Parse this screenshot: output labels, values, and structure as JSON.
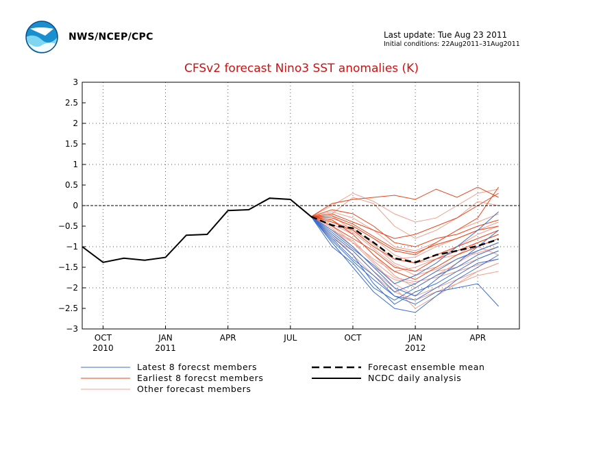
{
  "header": {
    "agency": "NWS/NCEP/CPC",
    "last_update": "Last update: Tue Aug 23 2011",
    "initial_conditions": "Initial conditions: 22Aug2011–31Aug2011"
  },
  "colors": {
    "latest": "#3a6fcf",
    "earliest": "#e8461a",
    "other": "#f0a090",
    "mean": "#000000",
    "analysis": "#000000",
    "title": "#d01010"
  },
  "chart_data": {
    "type": "line",
    "title": "CFSv2 forecast Nino3 SST anomalies (K)",
    "ylim": [
      -3,
      3
    ],
    "yticks": [
      "3",
      "2.5",
      "2",
      "1.5",
      "1",
      "0.5",
      "0",
      "−0.5",
      "−1",
      "−1.5",
      "−2",
      "−2.5",
      "−3"
    ],
    "xticks": [
      {
        "label": "OCT",
        "sub": "2010",
        "month": 1
      },
      {
        "label": "JAN",
        "sub": "2011",
        "month": 4
      },
      {
        "label": "APR",
        "sub": "",
        "month": 7
      },
      {
        "label": "JUL",
        "sub": "",
        "month": 10
      },
      {
        "label": "OCT",
        "sub": "",
        "month": 13
      },
      {
        "label": "JAN",
        "sub": "2012",
        "month": 16
      },
      {
        "label": "APR",
        "sub": "",
        "month": 19
      }
    ],
    "xrange": [
      0,
      21
    ],
    "analysis": {
      "name": "NCDC daily analysis",
      "x": [
        0,
        1,
        2,
        3,
        4,
        5,
        6,
        7,
        8,
        9,
        10,
        11
      ],
      "y": [
        -1.0,
        -1.38,
        -1.28,
        -1.33,
        -1.26,
        -0.72,
        -0.7,
        -0.12,
        -0.1,
        0.18,
        0.15,
        -0.27
      ]
    },
    "ensemble_mean": {
      "name": "Forecast ensemble mean",
      "x": [
        11,
        12,
        13,
        14,
        15,
        16,
        17,
        18,
        19,
        20
      ],
      "y": [
        -0.27,
        -0.48,
        -0.55,
        -0.9,
        -1.28,
        -1.38,
        -1.2,
        -1.1,
        -0.98,
        -0.82
      ]
    },
    "latest_members": {
      "name": "Latest 8 forecst members",
      "x": [
        11,
        12,
        13,
        14,
        15,
        16,
        17,
        18,
        19,
        20
      ],
      "series": [
        [
          -0.27,
          -0.75,
          -1.2,
          -1.9,
          -2.4,
          -2.1,
          -1.9,
          -1.6,
          -1.3,
          -1.1
        ],
        [
          -0.27,
          -0.9,
          -1.5,
          -2.1,
          -2.5,
          -2.6,
          -2.2,
          -1.8,
          -1.5,
          -1.2
        ],
        [
          -0.27,
          -0.6,
          -1.0,
          -1.5,
          -2.0,
          -2.2,
          -1.8,
          -1.4,
          -1.0,
          -0.6
        ],
        [
          -0.27,
          -0.8,
          -1.3,
          -1.7,
          -2.2,
          -2.4,
          -2.1,
          -2.0,
          -1.9,
          -2.45
        ],
        [
          -0.27,
          -0.7,
          -1.1,
          -1.6,
          -2.1,
          -1.9,
          -1.6,
          -1.3,
          -1.1,
          -0.9
        ],
        [
          -0.27,
          -1.0,
          -1.4,
          -2.0,
          -2.3,
          -2.0,
          -1.7,
          -1.5,
          -1.2,
          -1.0
        ],
        [
          -0.27,
          -0.65,
          -1.05,
          -1.45,
          -1.9,
          -1.7,
          -1.4,
          -1.0,
          -0.6,
          -0.15
        ],
        [
          -0.27,
          -0.85,
          -1.35,
          -1.8,
          -2.2,
          -2.3,
          -2.0,
          -1.7,
          -1.4,
          -1.3
        ]
      ]
    },
    "earliest_members": {
      "name": "Earliest 8 forecst members",
      "x": [
        11,
        12,
        13,
        14,
        15,
        16,
        17,
        18,
        19,
        20
      ],
      "series": [
        [
          -0.27,
          0.05,
          0.15,
          0.2,
          0.25,
          0.15,
          0.4,
          0.2,
          0.45,
          0.2
        ],
        [
          -0.27,
          -0.3,
          -0.5,
          -0.8,
          -1.1,
          -1.2,
          -0.9,
          -0.6,
          -0.3,
          0.45
        ],
        [
          -0.27,
          -0.2,
          -0.4,
          -0.6,
          -0.8,
          -0.7,
          -0.5,
          -0.3,
          0.0,
          0.3
        ],
        [
          -0.27,
          -0.4,
          -0.6,
          -1.0,
          -1.3,
          -1.4,
          -1.2,
          -1.0,
          -0.8,
          -0.6
        ],
        [
          -0.27,
          -0.5,
          -0.8,
          -1.1,
          -1.5,
          -1.6,
          -1.3,
          -1.1,
          -0.9,
          -0.7
        ],
        [
          -0.27,
          -0.1,
          -0.2,
          -0.5,
          -0.9,
          -1.0,
          -0.8,
          -0.7,
          -0.5,
          -0.35
        ],
        [
          -0.27,
          -0.35,
          -0.7,
          -1.2,
          -1.6,
          -1.8,
          -1.5,
          -1.2,
          -1.0,
          -0.8
        ],
        [
          -0.27,
          -0.25,
          -0.45,
          -0.75,
          -1.05,
          -1.15,
          -0.95,
          -0.8,
          -0.6,
          -0.5
        ]
      ]
    },
    "other_members": {
      "name": "Other forecast members",
      "x": [
        11,
        12,
        13,
        14,
        15,
        16,
        17,
        18,
        19,
        20
      ],
      "series": [
        [
          -0.27,
          0.0,
          0.3,
          0.1,
          -0.2,
          -0.4,
          -0.3,
          0.0,
          0.3,
          0.4
        ],
        [
          -0.27,
          -0.2,
          0.2,
          0.05,
          -0.5,
          -0.8,
          -0.6,
          -0.3,
          0.1,
          0.0
        ],
        [
          -0.27,
          -0.6,
          -0.9,
          -1.4,
          -1.9,
          -2.2,
          -2.0,
          -1.8,
          -1.6,
          -1.4
        ],
        [
          -0.27,
          -0.45,
          -0.7,
          -1.2,
          -1.7,
          -2.0,
          -1.7,
          -1.4,
          -1.1,
          -0.9
        ],
        [
          -0.27,
          -0.3,
          -0.5,
          -0.8,
          -1.2,
          -1.4,
          -1.3,
          -1.0,
          -0.7,
          -0.5
        ],
        [
          -0.27,
          -0.5,
          -0.9,
          -1.3,
          -1.6,
          -1.5,
          -1.3,
          -1.2,
          -1.0,
          -1.2
        ],
        [
          -0.27,
          -0.7,
          -1.2,
          -1.7,
          -2.1,
          -2.3,
          -2.1,
          -1.9,
          -1.7,
          -1.6
        ],
        [
          -0.27,
          -0.4,
          -0.55,
          -0.95,
          -1.4,
          -1.6,
          -1.5,
          -1.2,
          -0.9,
          -0.7
        ],
        [
          -0.27,
          -0.15,
          -0.3,
          -0.6,
          -1.0,
          -1.1,
          -0.9,
          -0.6,
          -0.4,
          -0.2
        ],
        [
          -0.27,
          -0.55,
          -1.0,
          -1.5,
          -1.8,
          -1.9,
          -1.6,
          -1.5,
          -1.3,
          -1.1
        ],
        [
          -0.27,
          -0.35,
          -0.65,
          -1.05,
          -1.45,
          -1.7,
          -1.55,
          -1.3,
          -1.15,
          -1.0
        ],
        [
          -0.27,
          -0.8,
          -1.1,
          -1.6,
          -2.0,
          -2.5,
          -2.2,
          -1.9,
          -1.6,
          -1.4
        ],
        [
          -0.27,
          -0.25,
          -0.6,
          -0.9,
          -1.3,
          -1.25,
          -1.0,
          -0.8,
          -0.6,
          -0.4
        ],
        [
          -0.27,
          -0.6,
          -0.85,
          -1.35,
          -1.75,
          -1.85,
          -1.75,
          -1.6,
          -1.45,
          -1.3
        ]
      ]
    },
    "zero_line": 0
  },
  "legend": {
    "latest": "Latest 8 forecst members",
    "earliest": "Earliest 8 forecst members",
    "other": "Other forecast members",
    "mean": "Forecast ensemble mean",
    "analysis": "NCDC daily analysis"
  }
}
